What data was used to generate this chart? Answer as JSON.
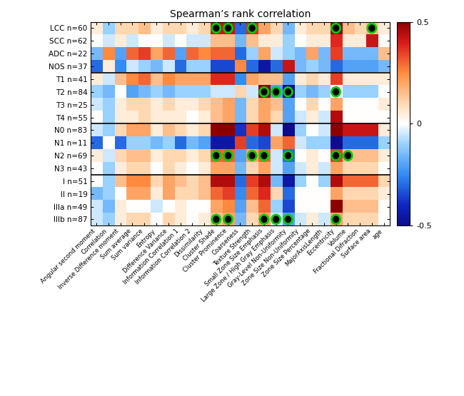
{
  "title": "Spearman’s rank correlation",
  "row_labels": [
    [
      "LCC n=60",
      "SCC n=62",
      "ADC n=22",
      "NOS n=37"
    ],
    [
      "T1 n=41",
      "T2 n=84",
      "T3 n=25",
      "T4 n=55"
    ],
    [
      "N0 n=83",
      "N1 n=11",
      "N2 n=69",
      "N3 n=43"
    ],
    [
      "I n=51",
      "II n=19",
      "IIIa n=49",
      "IIIb n=87"
    ]
  ],
  "col_labels": [
    "Angular second moment",
    "Correlation",
    "Inverse Difference moment",
    "Sum average",
    "Sum variance",
    "Entropy",
    "Difference Variance",
    "Information Correlation 1",
    "Information Correlation 2",
    "Dissimilarity",
    "Cluster Shade",
    "Cluster Prominence",
    "Coarseness",
    "Texture Strength",
    "Small Zone Size Emphasis",
    "Large Zone / High Gray Emphasis",
    "Gray-Level Non-Uniformity",
    "Zone Size Non-Uniformity",
    "Zone Size Percentage",
    "MajorAxisLength",
    "Eccentricity",
    "Volume",
    "Fractional Difraction",
    "Surface area",
    "age"
  ],
  "data": [
    [
      [
        0.05,
        -0.1,
        0.1,
        0.1,
        0.15,
        0.05,
        0.1,
        0.1,
        0.05,
        0.1,
        0.42,
        0.42,
        -0.3,
        0.38,
        0.2,
        0.1,
        -0.15,
        0.05,
        0.1,
        0.1,
        0.5,
        0.15,
        0.1,
        0.15,
        0.05
      ],
      [
        0.0,
        -0.05,
        0.05,
        -0.05,
        0.0,
        0.0,
        -0.05,
        0.0,
        -0.05,
        -0.05,
        0.15,
        0.15,
        -0.15,
        0.15,
        0.05,
        0.05,
        -0.1,
        0.0,
        0.05,
        0.05,
        0.38,
        0.05,
        0.05,
        0.42,
        0.0
      ],
      [
        -0.15,
        0.25,
        -0.2,
        0.3,
        0.35,
        0.2,
        0.3,
        -0.2,
        0.3,
        0.25,
        0.3,
        0.3,
        -0.3,
        -0.1,
        0.2,
        -0.05,
        -0.1,
        -0.15,
        0.2,
        -0.15,
        0.35,
        -0.15,
        -0.15,
        -0.15,
        0.15
      ],
      [
        -0.3,
        0.05,
        -0.25,
        -0.05,
        -0.1,
        -0.15,
        -0.05,
        -0.3,
        -0.1,
        -0.1,
        -0.35,
        -0.35,
        0.25,
        -0.3,
        -0.45,
        -0.3,
        0.42,
        -0.15,
        -0.1,
        -0.15,
        -0.3,
        -0.2,
        -0.2,
        -0.2,
        -0.15
      ]
    ],
    [
      [
        0.05,
        -0.05,
        0.15,
        0.25,
        0.3,
        0.15,
        0.25,
        0.2,
        0.2,
        0.2,
        0.38,
        0.38,
        -0.25,
        0.2,
        0.15,
        0.15,
        -0.2,
        0.05,
        0.1,
        0.05,
        0.35,
        0.05,
        0.05,
        0.05,
        0.05
      ],
      [
        -0.1,
        -0.15,
        0.0,
        -0.2,
        -0.15,
        -0.1,
        -0.15,
        -0.1,
        -0.1,
        -0.1,
        -0.05,
        -0.05,
        0.1,
        -0.05,
        0.5,
        -0.2,
        -0.5,
        -0.1,
        -0.15,
        -0.1,
        0.0,
        -0.1,
        -0.1,
        -0.1,
        0.0
      ],
      [
        -0.05,
        -0.1,
        0.05,
        0.1,
        0.1,
        0.05,
        0.1,
        0.05,
        0.05,
        0.1,
        0.15,
        0.2,
        -0.15,
        0.1,
        0.2,
        0.15,
        -0.2,
        0.0,
        0.1,
        0.0,
        0.2,
        0.0,
        0.0,
        0.0,
        0.05
      ],
      [
        0.0,
        -0.1,
        0.05,
        0.05,
        0.1,
        0.05,
        0.05,
        0.05,
        0.0,
        0.05,
        0.15,
        0.2,
        -0.15,
        0.1,
        0.2,
        0.1,
        -0.2,
        -0.05,
        0.05,
        -0.05,
        0.45,
        0.0,
        0.0,
        0.0,
        0.0
      ]
    ],
    [
      [
        -0.05,
        -0.1,
        0.1,
        0.2,
        0.2,
        0.05,
        0.15,
        0.1,
        0.05,
        0.1,
        0.5,
        0.5,
        -0.38,
        0.35,
        0.45,
        -0.05,
        -0.5,
        -0.1,
        0.0,
        -0.05,
        0.5,
        0.42,
        0.42,
        0.42,
        0.05
      ],
      [
        -0.3,
        0.0,
        -0.3,
        -0.1,
        -0.1,
        -0.15,
        -0.1,
        -0.3,
        -0.15,
        -0.2,
        -0.45,
        -0.45,
        0.35,
        -0.3,
        -0.35,
        0.2,
        0.3,
        -0.05,
        -0.1,
        -0.1,
        -0.5,
        -0.3,
        -0.3,
        -0.3,
        -0.1
      ],
      [
        0.05,
        -0.05,
        0.1,
        0.15,
        0.15,
        0.05,
        0.1,
        0.1,
        0.05,
        0.1,
        0.3,
        0.3,
        -0.2,
        0.2,
        0.3,
        -0.05,
        -0.3,
        0.0,
        0.05,
        0.0,
        0.35,
        0.15,
        0.15,
        0.15,
        0.05
      ],
      [
        0.0,
        -0.1,
        0.05,
        0.1,
        0.1,
        0.0,
        0.1,
        0.05,
        0.0,
        0.05,
        0.2,
        0.2,
        -0.15,
        0.1,
        0.2,
        -0.05,
        -0.2,
        -0.05,
        0.05,
        -0.05,
        0.2,
        0.1,
        0.1,
        0.1,
        0.0
      ]
    ],
    [
      [
        0.0,
        -0.1,
        0.15,
        0.25,
        0.25,
        0.1,
        0.2,
        0.15,
        0.1,
        0.15,
        0.45,
        0.45,
        -0.3,
        0.35,
        0.45,
        -0.15,
        -0.45,
        -0.1,
        0.0,
        -0.1,
        0.45,
        0.3,
        0.3,
        0.3,
        0.1
      ],
      [
        -0.15,
        -0.1,
        0.0,
        0.2,
        0.2,
        0.05,
        0.2,
        0.1,
        0.1,
        0.15,
        0.3,
        0.35,
        -0.25,
        0.3,
        0.38,
        0.1,
        -0.3,
        0.0,
        0.0,
        0.0,
        0.2,
        0.1,
        0.1,
        0.1,
        0.05
      ],
      [
        -0.05,
        -0.15,
        0.05,
        0.0,
        0.0,
        -0.05,
        0.0,
        0.05,
        0.0,
        0.0,
        0.2,
        0.25,
        -0.2,
        0.15,
        0.3,
        -0.1,
        -0.35,
        0.0,
        0.0,
        0.0,
        0.5,
        0.15,
        0.15,
        0.15,
        0.0
      ],
      [
        -0.05,
        -0.1,
        0.05,
        0.1,
        0.1,
        0.0,
        0.1,
        0.05,
        0.0,
        0.05,
        0.15,
        0.2,
        -0.15,
        0.1,
        0.2,
        -0.05,
        -0.2,
        -0.05,
        0.05,
        -0.05,
        0.2,
        0.1,
        0.1,
        0.1,
        0.0
      ]
    ]
  ],
  "significant_cells": [
    [
      [
        0,
        10
      ],
      [
        0,
        11
      ],
      [
        0,
        13
      ],
      [
        0,
        20
      ],
      [
        0,
        23
      ]
    ],
    [
      [
        1,
        14
      ],
      [
        1,
        15
      ],
      [
        1,
        16
      ],
      [
        1,
        20
      ]
    ],
    [
      [
        2,
        10
      ],
      [
        2,
        11
      ],
      [
        2,
        13
      ],
      [
        2,
        14
      ],
      [
        2,
        16
      ],
      [
        2,
        20
      ],
      [
        2,
        21
      ]
    ],
    [
      [
        3,
        10
      ],
      [
        3,
        11
      ],
      [
        3,
        14
      ],
      [
        3,
        15
      ],
      [
        3,
        16
      ],
      [
        3,
        20
      ]
    ]
  ],
  "vmin": -0.5,
  "vmax": 0.5,
  "cmap_colors": [
    [
      0.0,
      [
        0.05,
        0.05,
        0.55
      ]
    ],
    [
      0.1,
      [
        0.05,
        0.15,
        0.75
      ]
    ],
    [
      0.25,
      [
        0.2,
        0.55,
        0.95
      ]
    ],
    [
      0.4,
      [
        0.6,
        0.82,
        1.0
      ]
    ],
    [
      0.5,
      [
        1.0,
        1.0,
        1.0
      ]
    ],
    [
      0.6,
      [
        1.0,
        0.85,
        0.7
      ]
    ],
    [
      0.75,
      [
        1.0,
        0.55,
        0.25
      ]
    ],
    [
      0.9,
      [
        0.85,
        0.1,
        0.1
      ]
    ],
    [
      1.0,
      [
        0.55,
        0.0,
        0.0
      ]
    ]
  ]
}
